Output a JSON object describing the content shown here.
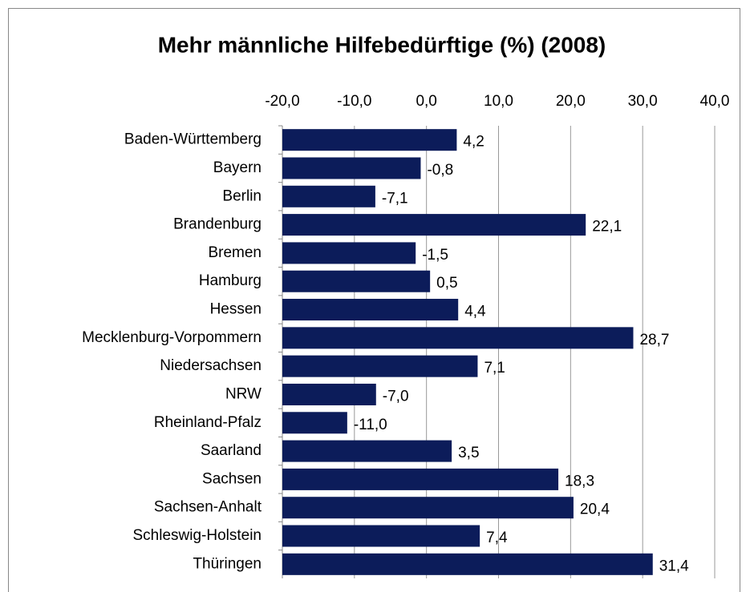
{
  "chart_data": {
    "type": "bar",
    "orientation": "horizontal",
    "title": "Mehr männliche Hilfebedürftige (%) (2008)",
    "categories": [
      "Baden-Württemberg",
      "Bayern",
      "Berlin",
      "Brandenburg",
      "Bremen",
      "Hamburg",
      "Hessen",
      "Mecklenburg-Vorpommern",
      "Niedersachsen",
      "NRW",
      "Rheinland-Pfalz",
      "Saarland",
      "Sachsen",
      "Sachsen-Anhalt",
      "Schleswig-Holstein",
      "Thüringen"
    ],
    "values": [
      4.2,
      -0.8,
      -7.1,
      22.1,
      -1.5,
      0.5,
      4.4,
      28.7,
      7.1,
      -7.0,
      -11.0,
      3.5,
      18.3,
      20.4,
      7.4,
      31.4
    ],
    "value_labels": [
      "4,2",
      "-0,8",
      "-7,1",
      "22,1",
      "-1,5",
      "0,5",
      "4,4",
      "28,7",
      "7,1",
      "-7,0",
      "-11,0",
      "3,5",
      "18,3",
      "20,4",
      "7,4",
      "31,4"
    ],
    "color": "#0c1c5a",
    "xlim": [
      -20,
      40
    ],
    "xticks": [
      {
        "value": -20,
        "label": "-20,0"
      },
      {
        "value": -10,
        "label": "-10,0"
      },
      {
        "value": 0,
        "label": "0,0"
      },
      {
        "value": 10,
        "label": "10,0"
      },
      {
        "value": 20,
        "label": "20,0"
      },
      {
        "value": 30,
        "label": "30,0"
      },
      {
        "value": 40,
        "label": "40,0"
      }
    ],
    "grid": true
  }
}
